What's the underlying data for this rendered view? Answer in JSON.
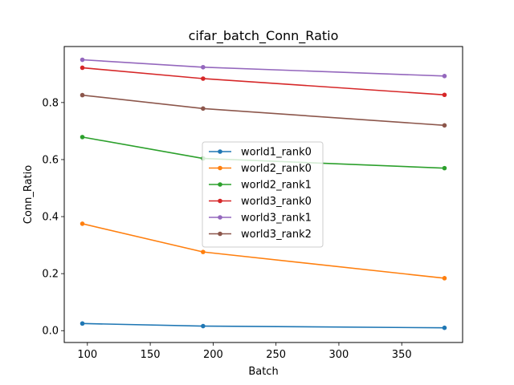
{
  "chart_data": {
    "type": "line",
    "title": "cifar_batch_Conn_Ratio",
    "xlabel": "Batch",
    "ylabel": "Conn_Ratio",
    "xlim": [
      81.6,
      398.4
    ],
    "ylim": [
      -0.0415,
      0.9965
    ],
    "xticks": [
      100,
      150,
      200,
      250,
      300,
      350
    ],
    "xtick_labels": [
      "100",
      "150",
      "200",
      "250",
      "300",
      "350"
    ],
    "yticks": [
      0.0,
      0.2,
      0.4,
      0.6,
      0.8
    ],
    "ytick_labels": [
      "0.0",
      "0.2",
      "0.4",
      "0.6",
      "0.8"
    ],
    "x": [
      96,
      192,
      384
    ],
    "grid": false,
    "legend_placement": "center",
    "series": [
      {
        "name": "world1_rank0",
        "color": "#1f77b4",
        "values": [
          0.025,
          0.016,
          0.01
        ]
      },
      {
        "name": "world2_rank0",
        "color": "#ff7f0e",
        "values": [
          0.375,
          0.276,
          0.184
        ]
      },
      {
        "name": "world2_rank1",
        "color": "#2ca02c",
        "values": [
          0.679,
          0.604,
          0.57
        ]
      },
      {
        "name": "world3_rank0",
        "color": "#d62728",
        "values": [
          0.922,
          0.884,
          0.827
        ]
      },
      {
        "name": "world3_rank1",
        "color": "#9467bd",
        "values": [
          0.95,
          0.924,
          0.893
        ]
      },
      {
        "name": "world3_rank2",
        "color": "#8c564b",
        "values": [
          0.826,
          0.779,
          0.72
        ]
      }
    ]
  }
}
